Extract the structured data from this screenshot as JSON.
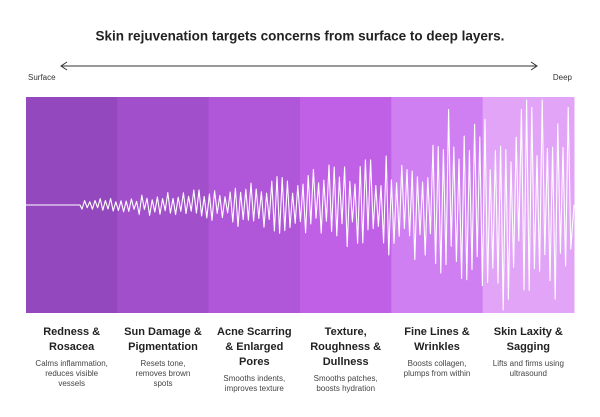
{
  "title": "Skin rejuvenation targets concerns from surface to deep layers.",
  "axis": {
    "start": "Surface",
    "end": "Deep"
  },
  "columns": [
    {
      "title": [
        "Redness &",
        "Rosacea"
      ],
      "description": [
        "Calms inflammation,",
        "reduces visible",
        "vessels"
      ]
    },
    {
      "title": [
        "Sun Damage &",
        "Pigmentation"
      ],
      "description": [
        "Resets tone,",
        "removes brown",
        "spots"
      ]
    },
    {
      "title": [
        "Acne Scarring",
        "& Enlarged",
        "Pores"
      ],
      "description": [
        "Smooths indents,",
        "improves texture"
      ]
    },
    {
      "title": [
        "Texture,",
        "Roughness &",
        "Dullness"
      ],
      "description": [
        "Smooths patches,",
        "boosts hydration"
      ]
    },
    {
      "title": [
        "Fine Lines &",
        "Wrinkles"
      ],
      "description": [
        "Boosts collagen,",
        "plumps from within"
      ]
    },
    {
      "title": [
        "Skin Laxity &",
        "Sagging"
      ],
      "description": [
        "Lifts and firms using",
        "ultrasound"
      ]
    }
  ]
}
